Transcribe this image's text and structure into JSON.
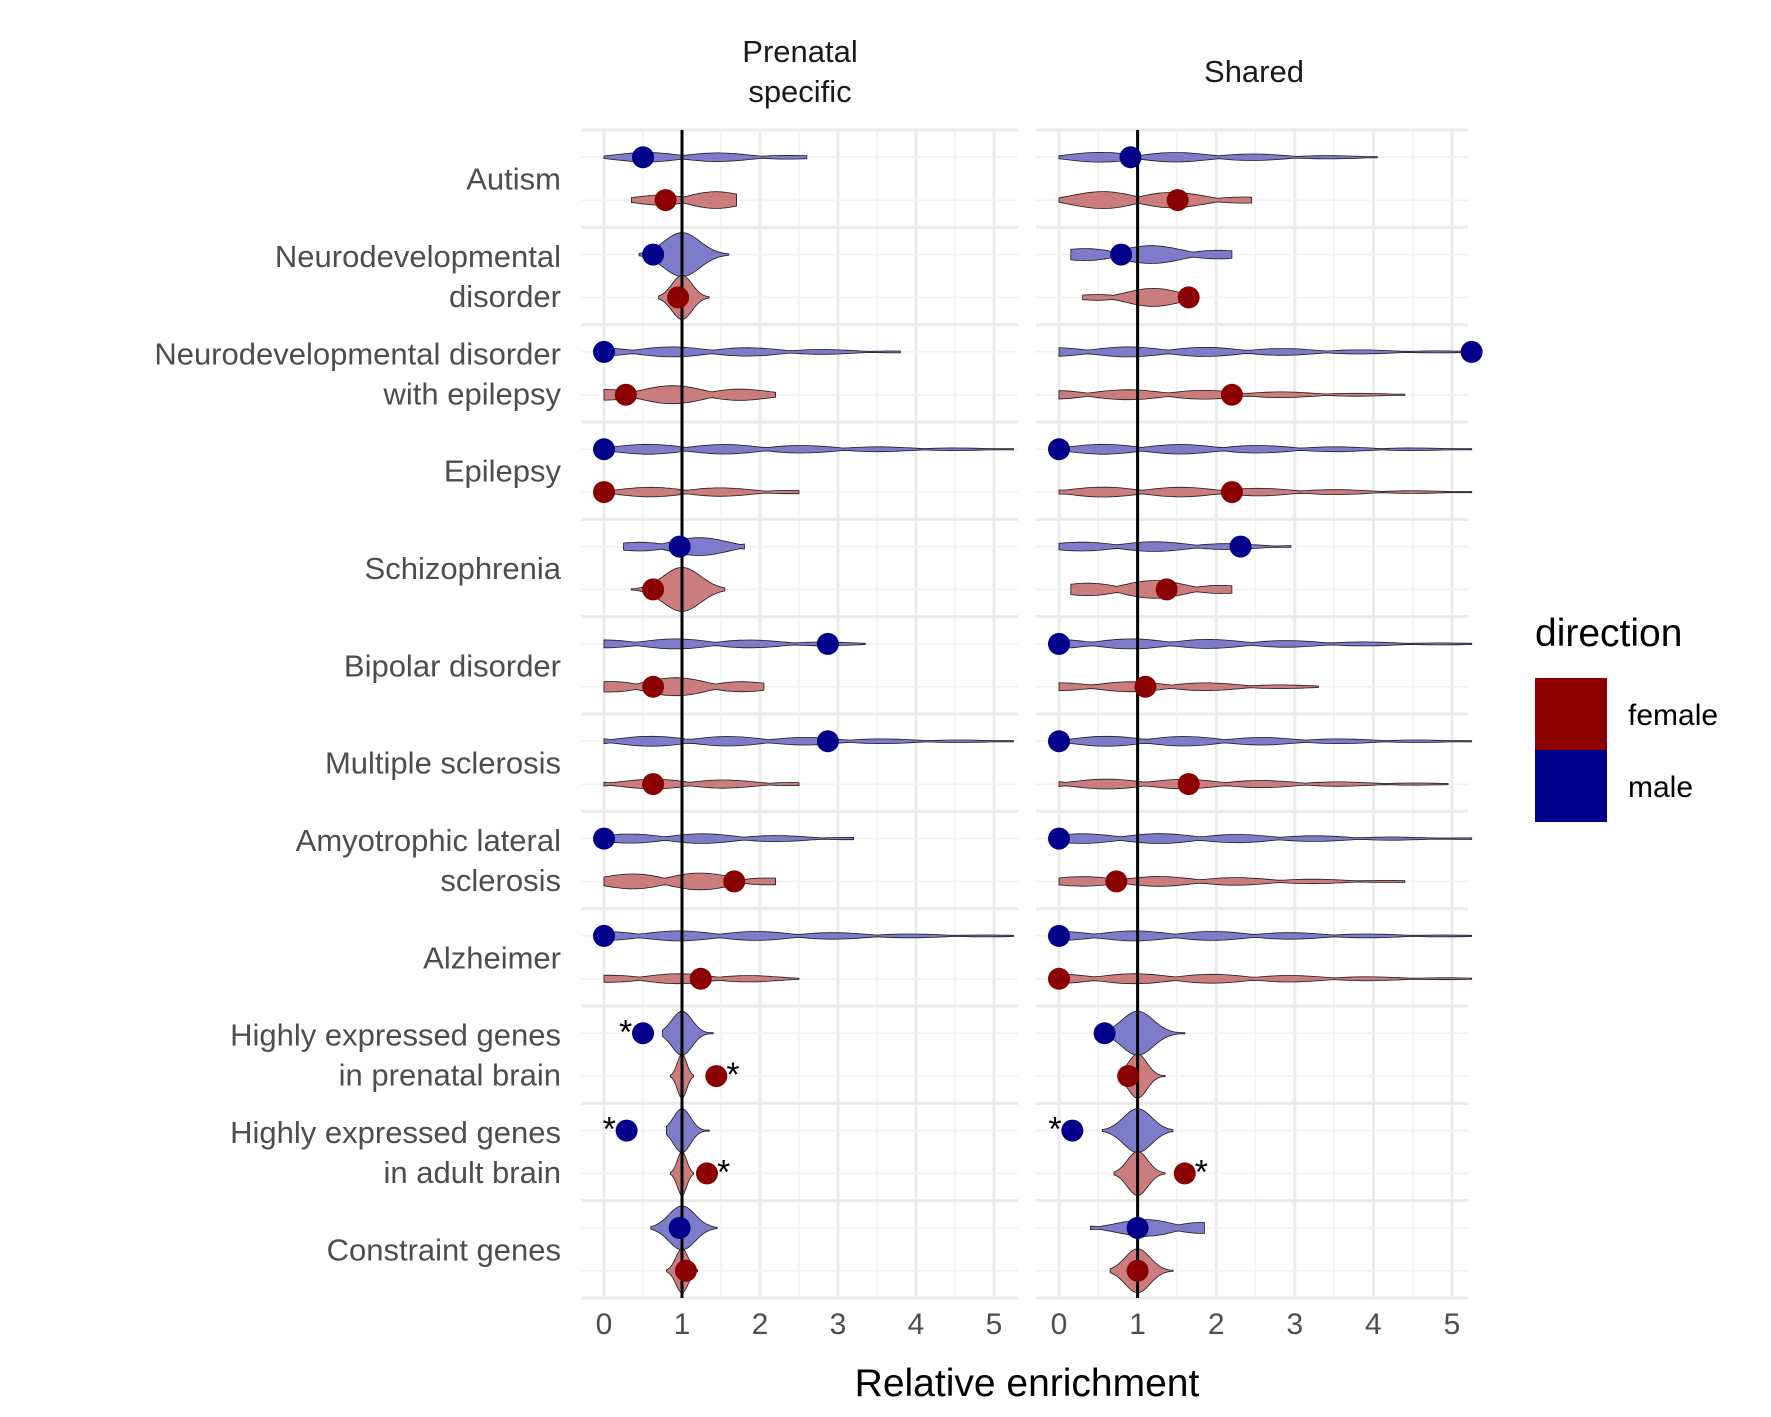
{
  "chart_data": {
    "type": "violin+point",
    "xlabel": "Relative enrichment",
    "ylabel": "",
    "xlim": [
      -0.25,
      5.25
    ],
    "xticks": [
      0,
      1,
      2,
      3,
      4,
      5
    ],
    "reference_line_x": 1,
    "facets": [
      "Prenatal\nspecific",
      "Shared"
    ],
    "categories": [
      "Autism",
      "Neurodevelopmental\ndisorder",
      "Neurodevelopmental disorder\nwith epilepsy",
      "Epilepsy",
      "Schizophrenia",
      "Bipolar disorder",
      "Multiple sclerosis",
      "Amyotrophic lateral\nsclerosis",
      "Alzheimer",
      "Highly expressed genes\nin prenatal brain",
      "Highly expressed genes\nin adult brain",
      "Constraint genes"
    ],
    "legend": {
      "title": "direction",
      "position": "right",
      "entries": [
        {
          "label": "female",
          "color": "#8b0000"
        },
        {
          "label": "male",
          "color": "#00008b"
        }
      ]
    },
    "violin_colors": {
      "female": "#c87575",
      "male": "#7575c8"
    },
    "significance_marker": "*",
    "points": {
      "Prenatal\nspecific": {
        "male": [
          0.5,
          0.63,
          0.0,
          0.0,
          0.97,
          2.87,
          2.87,
          0.0,
          0.0,
          0.5,
          0.29,
          0.97
        ],
        "female": [
          0.79,
          0.95,
          0.28,
          0.0,
          0.63,
          0.63,
          0.63,
          1.67,
          1.24,
          1.44,
          1.32,
          1.05
        ]
      },
      "Shared": {
        "male": [
          0.91,
          0.79,
          5.25,
          0.0,
          2.31,
          0.0,
          0.0,
          0.0,
          0.0,
          0.58,
          0.17,
          1.0
        ],
        "female": [
          1.51,
          1.65,
          2.2,
          2.2,
          1.37,
          1.1,
          1.65,
          0.73,
          0.0,
          0.88,
          1.6,
          1.0
        ]
      }
    },
    "significant": {
      "Prenatal\nspecific": {
        "male": [
          false,
          false,
          false,
          false,
          false,
          false,
          false,
          false,
          false,
          true,
          true,
          false
        ],
        "female": [
          false,
          false,
          false,
          false,
          false,
          false,
          false,
          false,
          false,
          true,
          true,
          false
        ]
      },
      "Shared": {
        "male": [
          false,
          false,
          false,
          false,
          false,
          false,
          false,
          false,
          false,
          false,
          true,
          false
        ],
        "female": [
          false,
          false,
          false,
          false,
          false,
          false,
          false,
          false,
          false,
          false,
          true,
          false
        ]
      }
    },
    "violin_range": {
      "Prenatal\nspecific": {
        "male": [
          [
            0,
            2.6
          ],
          [
            0.45,
            1.6
          ],
          [
            0,
            3.8
          ],
          [
            0,
            5.25
          ],
          [
            0.25,
            1.8
          ],
          [
            0,
            3.35
          ],
          [
            0,
            5.25
          ],
          [
            0,
            3.2
          ],
          [
            0,
            5.25
          ],
          [
            0.75,
            1.4
          ],
          [
            0.8,
            1.35
          ],
          [
            0.6,
            1.45
          ]
        ],
        "female": [
          [
            0.35,
            1.7
          ],
          [
            0.7,
            1.35
          ],
          [
            0,
            2.2
          ],
          [
            0,
            2.5
          ],
          [
            0.35,
            1.55
          ],
          [
            0,
            2.05
          ],
          [
            0,
            2.5
          ],
          [
            0,
            2.2
          ],
          [
            0,
            2.5
          ],
          [
            0.85,
            1.15
          ],
          [
            0.85,
            1.15
          ],
          [
            0.8,
            1.2
          ]
        ]
      },
      "Shared": {
        "male": [
          [
            0,
            4.05
          ],
          [
            0.15,
            2.2
          ],
          [
            0,
            5.25
          ],
          [
            0,
            5.25
          ],
          [
            0,
            2.95
          ],
          [
            0,
            5.25
          ],
          [
            0,
            5.25
          ],
          [
            0,
            5.25
          ],
          [
            0,
            5.25
          ],
          [
            0.6,
            1.6
          ],
          [
            0.55,
            1.45
          ],
          [
            0.4,
            1.85
          ]
        ],
        "female": [
          [
            0,
            2.45
          ],
          [
            0.3,
            1.6
          ],
          [
            0,
            4.4
          ],
          [
            0,
            5.25
          ],
          [
            0.15,
            2.2
          ],
          [
            0,
            3.3
          ],
          [
            0,
            4.95
          ],
          [
            0,
            4.4
          ],
          [
            0,
            5.25
          ],
          [
            0.75,
            1.35
          ],
          [
            0.7,
            1.35
          ],
          [
            0.65,
            1.45
          ]
        ]
      }
    }
  },
  "strip_labels": [
    "Prenatal",
    "specific",
    "Shared"
  ]
}
